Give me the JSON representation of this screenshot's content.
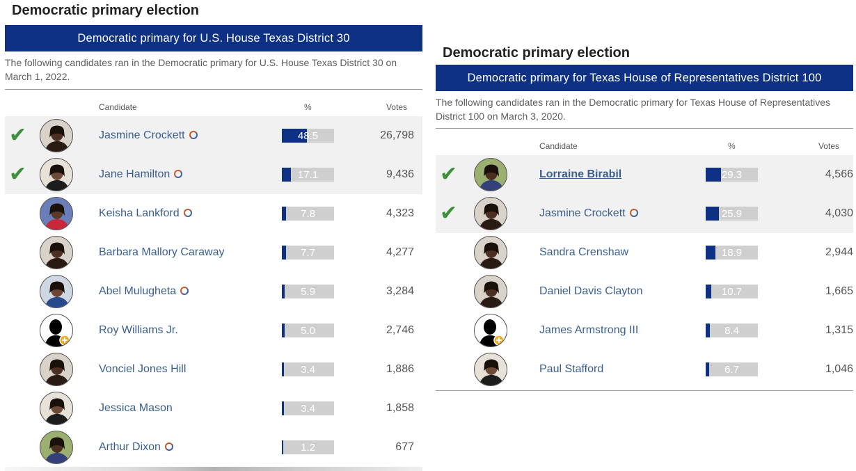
{
  "left": {
    "heading": "Democratic primary election",
    "race_title": "Democratic primary for U.S. House Texas District 30",
    "description": "The following candidates ran in the Democratic primary for U.S. House Texas District 30 on March 1, 2022.",
    "columns": {
      "candidate": "Candidate",
      "percent": "%",
      "votes": "Votes"
    },
    "rows": [
      {
        "name": "Jasmine Crockett",
        "pct": "48.5",
        "pct_value": 48.5,
        "votes": "26,798",
        "winner": true,
        "badge": true,
        "avatar": "photo-dark"
      },
      {
        "name": "Jane Hamilton",
        "pct": "17.1",
        "pct_value": 17.1,
        "votes": "9,436",
        "winner": true,
        "badge": true,
        "avatar": "photo-light"
      },
      {
        "name": "Keisha Lankford",
        "pct": "7.8",
        "pct_value": 7.8,
        "votes": "4,323",
        "winner": false,
        "badge": true,
        "avatar": "photo-red"
      },
      {
        "name": "Barbara Mallory Caraway",
        "pct": "7.7",
        "pct_value": 7.7,
        "votes": "4,277",
        "winner": false,
        "badge": false,
        "avatar": "photo-dark"
      },
      {
        "name": "Abel Mulugheta",
        "pct": "5.9",
        "pct_value": 5.9,
        "votes": "3,284",
        "winner": false,
        "badge": true,
        "avatar": "photo-blue"
      },
      {
        "name": "Roy Williams Jr.",
        "pct": "5.0",
        "pct_value": 5.0,
        "votes": "2,746",
        "winner": false,
        "badge": false,
        "avatar": "silhouette"
      },
      {
        "name": "Vonciel Jones Hill",
        "pct": "3.4",
        "pct_value": 3.4,
        "votes": "1,886",
        "winner": false,
        "badge": false,
        "avatar": "photo-dark"
      },
      {
        "name": "Jessica Mason",
        "pct": "3.4",
        "pct_value": 3.4,
        "votes": "1,858",
        "winner": false,
        "badge": false,
        "avatar": "photo-light"
      },
      {
        "name": "Arthur Dixon",
        "pct": "1.2",
        "pct_value": 1.2,
        "votes": "677",
        "winner": false,
        "badge": true,
        "avatar": "photo-green"
      }
    ]
  },
  "right": {
    "heading": "Democratic primary election",
    "race_title": "Democratic primary for Texas House of Representatives District 100",
    "description": "The following candidates ran in the Democratic primary for Texas House of Representatives District 100 on March 3, 2020.",
    "columns": {
      "candidate": "Candidate",
      "percent": "%",
      "votes": "Votes"
    },
    "rows": [
      {
        "name": "Lorraine Birabil",
        "pct": "29.3",
        "pct_value": 29.3,
        "votes": "4,566",
        "winner": true,
        "badge": false,
        "bold": true,
        "avatar": "photo-green"
      },
      {
        "name": "Jasmine Crockett",
        "pct": "25.9",
        "pct_value": 25.9,
        "votes": "4,030",
        "winner": true,
        "badge": true,
        "avatar": "photo-dark"
      },
      {
        "name": "Sandra Crenshaw",
        "pct": "18.9",
        "pct_value": 18.9,
        "votes": "2,944",
        "winner": false,
        "badge": false,
        "avatar": "photo-dark"
      },
      {
        "name": "Daniel Davis Clayton",
        "pct": "10.7",
        "pct_value": 10.7,
        "votes": "1,665",
        "winner": false,
        "badge": false,
        "avatar": "photo-dark"
      },
      {
        "name": "James Armstrong III",
        "pct": "8.4",
        "pct_value": 8.4,
        "votes": "1,315",
        "winner": false,
        "badge": false,
        "avatar": "silhouette"
      },
      {
        "name": "Paul Stafford",
        "pct": "6.7",
        "pct_value": 6.7,
        "votes": "1,046",
        "winner": false,
        "badge": false,
        "avatar": "photo-light"
      }
    ]
  },
  "colors": {
    "accent": "#0f3184",
    "check": "#3d8f3a",
    "link": "#3a5f8f",
    "bar_bg": "#cfcfcf"
  },
  "icons": {
    "winner": "checkmark-icon",
    "badge": "ballotpedia-badge-icon"
  }
}
